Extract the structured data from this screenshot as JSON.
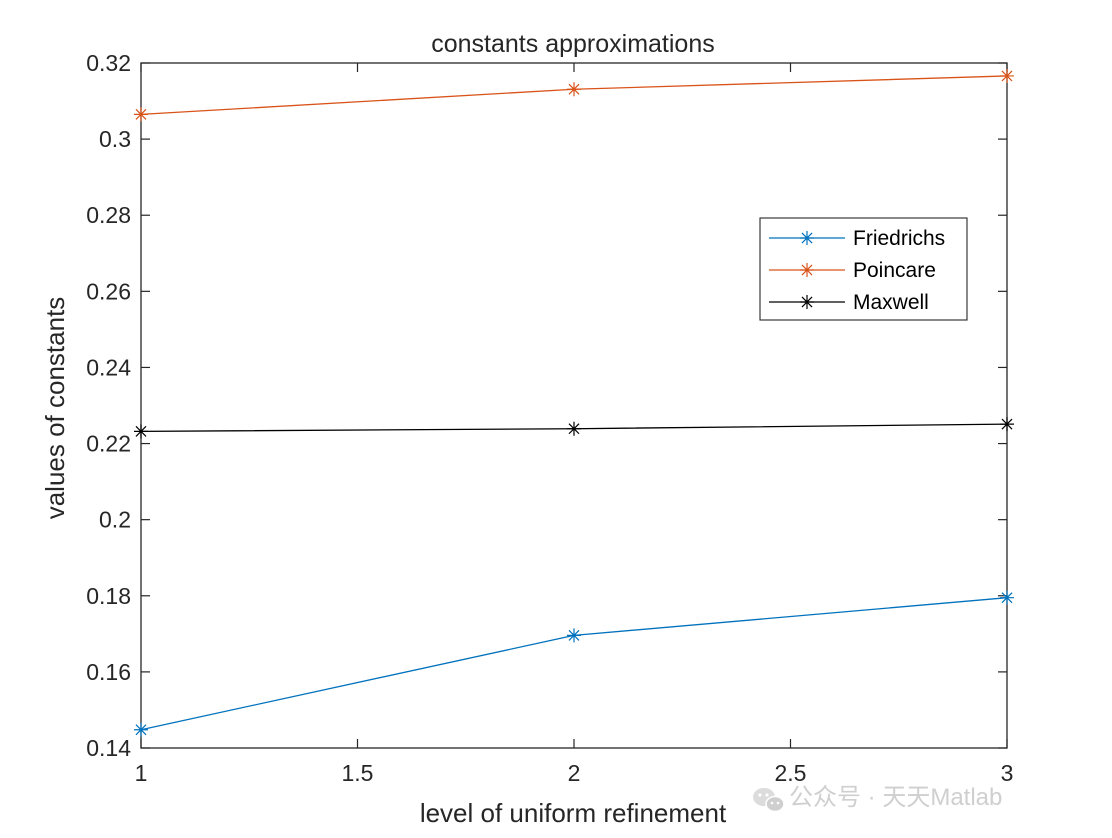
{
  "chart_data": {
    "type": "line",
    "title": "constants approximations",
    "xlabel": "level of uniform refinement",
    "ylabel": "values of constants",
    "x": [
      1,
      2,
      3
    ],
    "xlim": [
      1,
      3
    ],
    "ylim": [
      0.14,
      0.32
    ],
    "xticks": [
      "1",
      "1.5",
      "2",
      "2.5",
      "3"
    ],
    "yticks": [
      "0.14",
      "0.16",
      "0.18",
      "0.2",
      "0.22",
      "0.24",
      "0.26",
      "0.28",
      "0.3",
      "0.32"
    ],
    "grid": false,
    "legend_position": "right-middle",
    "marker": "asterisk",
    "series": [
      {
        "name": "Friedrichs",
        "values": [
          0.1448,
          0.1696,
          0.1795
        ],
        "color": "#0072BD"
      },
      {
        "name": "Poincare",
        "values": [
          0.3065,
          0.3131,
          0.3166
        ],
        "color": "#D95319"
      },
      {
        "name": "Maxwell",
        "values": [
          0.2232,
          0.2239,
          0.2251
        ],
        "color": "#000000"
      }
    ]
  },
  "watermark": {
    "text": "公众号 · 天天Matlab",
    "icon": "wechat-icon",
    "color": "#cfcfcf"
  },
  "colors": {
    "axis": "#262626",
    "background": "#ffffff"
  }
}
